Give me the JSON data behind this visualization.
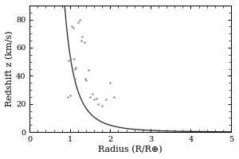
{
  "title": "",
  "xlabel": "Radius (R/R⊕)",
  "ylabel": "Redshift z (km/s)",
  "xlim": [
    0,
    5
  ],
  "ylim": [
    0,
    90
  ],
  "xticks": [
    0,
    1,
    2,
    3,
    4,
    5
  ],
  "yticks": [
    0,
    20,
    40,
    60,
    80
  ],
  "curve_color": "#222222",
  "scatter_color": "#888888",
  "background_color": "#ffffff",
  "scatter_points": [
    [
      0.95,
      25
    ],
    [
      0.97,
      51
    ],
    [
      1.0,
      26
    ],
    [
      1.02,
      52
    ],
    [
      1.05,
      75
    ],
    [
      1.08,
      74
    ],
    [
      1.1,
      52
    ],
    [
      1.12,
      38
    ],
    [
      1.13,
      45
    ],
    [
      1.15,
      46
    ],
    [
      1.2,
      78
    ],
    [
      1.25,
      80
    ],
    [
      1.28,
      65
    ],
    [
      1.3,
      68
    ],
    [
      1.35,
      64
    ],
    [
      1.38,
      38
    ],
    [
      1.4,
      37
    ],
    [
      1.45,
      44
    ],
    [
      1.5,
      25
    ],
    [
      1.55,
      27
    ],
    [
      1.6,
      23
    ],
    [
      1.65,
      24
    ],
    [
      1.7,
      20
    ],
    [
      1.8,
      19
    ],
    [
      1.9,
      23
    ],
    [
      2.0,
      35
    ],
    [
      2.1,
      25
    ]
  ],
  "curve_A": 55.0,
  "curve_power": 3.5,
  "curve_x_start": 0.62,
  "figsize": [
    3.0,
    2.0
  ],
  "dpi": 100,
  "font_size_ticks": 7,
  "font_size_label": 8
}
